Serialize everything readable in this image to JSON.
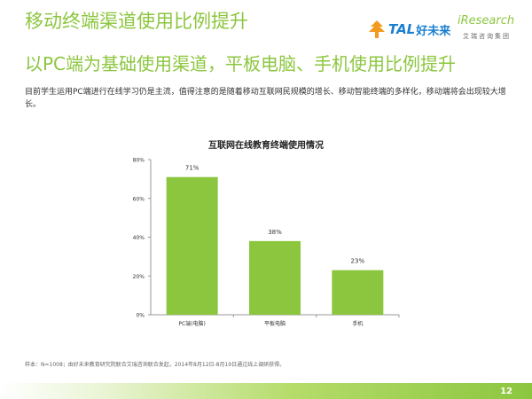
{
  "header": {
    "title": "移动终端渠道使用比例提升",
    "subtitle": "以PC端为基础使用渠道，平板电脑、手机使用比例提升"
  },
  "logos": {
    "tal_text": "TAL",
    "tal_cn": "好未来",
    "iresearch_text": "iResearch",
    "iresearch_cn": "艾瑞咨询集团"
  },
  "paragraph": "目前学生运用PC端进行在线学习仍是主流，值得注意的是随着移动互联网民规模的增长、移动智能终端的多样化，移动端将会出现较大增长。",
  "chart_data": {
    "type": "bar",
    "title": "互联网在线教育终端使用情况",
    "categories": [
      "PC端(电脑)",
      "平板电脑",
      "手机"
    ],
    "values": [
      71,
      38,
      23
    ],
    "value_labels": [
      "71%",
      "38%",
      "23%"
    ],
    "ylim": [
      0,
      80
    ],
    "yticks": [
      0,
      20,
      40,
      60,
      80
    ],
    "ytick_labels": [
      "0%",
      "20%",
      "40%",
      "60%",
      "80%"
    ],
    "grid": false,
    "bar_color": "#8cc63f"
  },
  "footnote": "样本：N=1008；由好未来教育研究院联合艾瑞咨询联合发起，2014年8月12日-8月19日通过线上调研获得。",
  "page_number": "12",
  "colors": {
    "accent": "#8cc63f",
    "tal_blue": "#1a7fd0"
  }
}
